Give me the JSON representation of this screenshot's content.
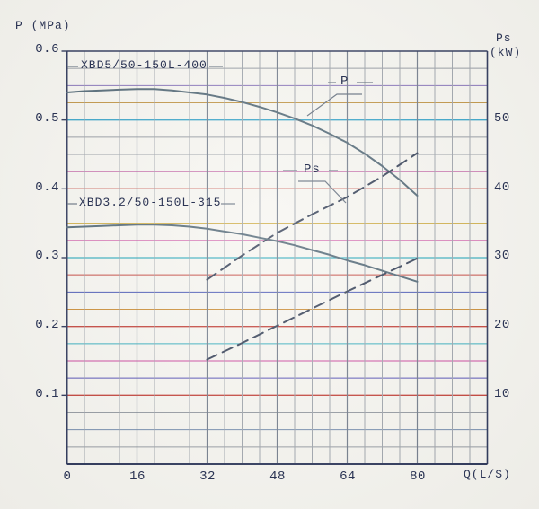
{
  "labels": {
    "y_left_title": "P (MPa)",
    "y_right_title_1": "Ps",
    "y_right_title_2": "(kW)",
    "x_title": "Q(L/S)",
    "model_1": "XBD5/50-150L-400",
    "model_2": "XBD3.2/50-150L-315",
    "p_callout": "P",
    "ps_callout": "Ps"
  },
  "axes": {
    "x_ticks": [
      "0",
      "16",
      "32",
      "48",
      "64",
      "80"
    ],
    "left_ticks": [
      "0.6",
      "0.5",
      "0.4",
      "0.3",
      "0.2",
      "0.1"
    ],
    "right_ticks": [
      "50",
      "40",
      "30",
      "20",
      "10"
    ]
  },
  "colors": {
    "axis_dark": "#232d52",
    "text": "#2b3454",
    "solid_curve": "#4a6170",
    "dashed_curve": "#2c3850",
    "minor_v_grid": "#9aa0a8",
    "major_v_grid": "#6b7585",
    "leader": "#5e6a7a"
  },
  "chart_data": {
    "type": "line",
    "title": "",
    "xlabel": "Q(L/S)",
    "ylabel_left": "P (MPa)",
    "ylabel_right": "Ps (kW)",
    "x_range": [
      0,
      96
    ],
    "x_tick_values": [
      0,
      16,
      32,
      48,
      64,
      80
    ],
    "left_axis_range": [
      0,
      0.6
    ],
    "left_tick_values": [
      0.6,
      0.5,
      0.4,
      0.3,
      0.2,
      0.1
    ],
    "right_axis_range": [
      0,
      60
    ],
    "right_tick_values": [
      50,
      40,
      30,
      20,
      10
    ],
    "minor_x_step": 4,
    "minor_y_step_mpa": 0.025,
    "grid": "on",
    "h_grid_colors": [
      "#232d52",
      "#8f959d",
      "#7e68b4",
      "#bd8f3c",
      "#2e9fc6",
      "#8f959d",
      "#8f959d",
      "#b43a90",
      "#c03a32",
      "#3a4ab0",
      "#c8a22c",
      "#c83a98",
      "#2aa9ba",
      "#c03a32",
      "#3a4ab0",
      "#c8872c",
      "#c03a32",
      "#2aa9ba",
      "#c83a98",
      "#4a44b0",
      "#c03a32",
      "#8f959d",
      "#6b85a8",
      "#8f959d",
      "#232d52"
    ],
    "series": [
      {
        "id": "xbd5-p",
        "name": "XBD5/50-150L-400 P",
        "style": "solid",
        "axis": "left",
        "points": [
          [
            0,
            0.54
          ],
          [
            4,
            0.542
          ],
          [
            8,
            0.543
          ],
          [
            12,
            0.544
          ],
          [
            16,
            0.545
          ],
          [
            20,
            0.545
          ],
          [
            24,
            0.543
          ],
          [
            28,
            0.54
          ],
          [
            32,
            0.537
          ],
          [
            36,
            0.532
          ],
          [
            40,
            0.526
          ],
          [
            44,
            0.519
          ],
          [
            48,
            0.511
          ],
          [
            52,
            0.502
          ],
          [
            56,
            0.492
          ],
          [
            60,
            0.48
          ],
          [
            64,
            0.467
          ],
          [
            68,
            0.451
          ],
          [
            72,
            0.433
          ],
          [
            76,
            0.413
          ],
          [
            80,
            0.39
          ]
        ]
      },
      {
        "id": "xbd5-ps",
        "name": "XBD5/50-150L-400 Ps",
        "style": "dashed",
        "axis": "right",
        "points": [
          [
            32,
            26.8
          ],
          [
            40,
            30.3
          ],
          [
            48,
            33.6
          ],
          [
            56,
            36.3
          ],
          [
            64,
            38.8
          ],
          [
            72,
            41.8
          ],
          [
            80,
            45.2
          ]
        ]
      },
      {
        "id": "xbd32-p",
        "name": "XBD3.2/50-150L-315 P",
        "style": "solid",
        "axis": "left",
        "points": [
          [
            0,
            0.344
          ],
          [
            4,
            0.345
          ],
          [
            8,
            0.346
          ],
          [
            12,
            0.347
          ],
          [
            16,
            0.348
          ],
          [
            20,
            0.348
          ],
          [
            24,
            0.347
          ],
          [
            28,
            0.345
          ],
          [
            32,
            0.342
          ],
          [
            36,
            0.338
          ],
          [
            40,
            0.334
          ],
          [
            44,
            0.329
          ],
          [
            48,
            0.324
          ],
          [
            52,
            0.318
          ],
          [
            56,
            0.311
          ],
          [
            60,
            0.304
          ],
          [
            64,
            0.296
          ],
          [
            68,
            0.289
          ],
          [
            72,
            0.281
          ],
          [
            76,
            0.273
          ],
          [
            80,
            0.265
          ]
        ]
      },
      {
        "id": "xbd32-ps",
        "name": "XBD3.2/50-150L-315 Ps",
        "style": "dashed",
        "axis": "right",
        "points": [
          [
            32,
            15.2
          ],
          [
            40,
            17.6
          ],
          [
            48,
            20.1
          ],
          [
            56,
            22.6
          ],
          [
            64,
            25.1
          ],
          [
            72,
            27.5
          ],
          [
            80,
            29.9
          ]
        ]
      }
    ],
    "annotations": [
      {
        "text": "XBD5/50-150L-400",
        "attached_to": "xbd5-p"
      },
      {
        "text": "XBD3.2/50-150L-315",
        "attached_to": "xbd32-p"
      },
      {
        "text": "P",
        "attached_to": "xbd5-p"
      },
      {
        "text": "Ps",
        "attached_to": "xbd5-ps"
      }
    ]
  }
}
